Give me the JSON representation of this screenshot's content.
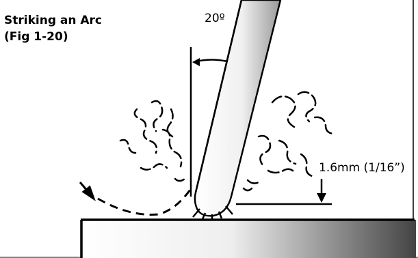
{
  "figure": {
    "title_line1": "Striking an Arc",
    "title_line2": "(Fig 1-20)",
    "angle_label": "20º",
    "gap_label": "1.6mm (1/16”)"
  },
  "icons": {
    "electrode": "welding-electrode-rod",
    "workpiece": "metal-plate",
    "spatter": "smoke-fumes"
  }
}
